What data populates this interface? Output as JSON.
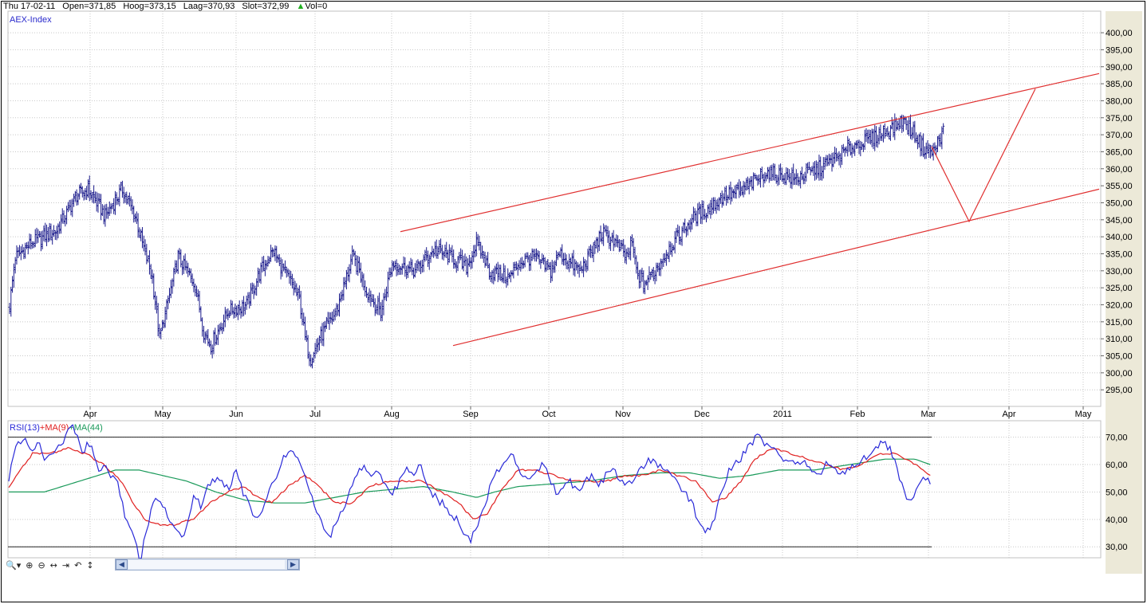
{
  "infobar": {
    "date": "Thu 17-02-11",
    "open": "Open=371,85",
    "high": "Hoog=373,15",
    "low": "Laag=370,93",
    "close": "Slot=372,99",
    "vol_icon": "triangle-up-icon",
    "vol": "Vol=0"
  },
  "colors": {
    "price": "#1c1c8c",
    "trendline": "#e03030",
    "rsi": "#2a2ad8",
    "ma9": "#e02020",
    "ma44": "#1a9a5a",
    "grid": "#c8c8c8",
    "panel_bg": "#ece9d8"
  },
  "chart_data": [
    {
      "type": "ohlc",
      "title": "AEX-Index",
      "x_months": [
        "Apr",
        "May",
        "Jun",
        "Jul",
        "Aug",
        "Sep",
        "Oct",
        "Nov",
        "Dec",
        "2011",
        "Feb",
        "Mar",
        "Apr",
        "May"
      ],
      "ylim": [
        292,
        404
      ],
      "yticks": [
        "295,00",
        "300,00",
        "305,00",
        "310,00",
        "315,00",
        "320,00",
        "325,00",
        "330,00",
        "335,00",
        "340,00",
        "345,00",
        "350,00",
        "355,00",
        "360,00",
        "365,00",
        "370,00",
        "375,00",
        "380,00",
        "385,00",
        "390,00",
        "395,00",
        "400,00"
      ],
      "grid": true,
      "anchors": [
        [
          0,
          320
        ],
        [
          4,
          334
        ],
        [
          15,
          338
        ],
        [
          33,
          342
        ],
        [
          47,
          352
        ],
        [
          55,
          354
        ],
        [
          67,
          346
        ],
        [
          79,
          354
        ],
        [
          88,
          346
        ],
        [
          93,
          338
        ],
        [
          100,
          328
        ],
        [
          105,
          310
        ],
        [
          118,
          334
        ],
        [
          130,
          326
        ],
        [
          136,
          312
        ],
        [
          141,
          308
        ],
        [
          153,
          318
        ],
        [
          166,
          320
        ],
        [
          176,
          330
        ],
        [
          185,
          336
        ],
        [
          189,
          332
        ],
        [
          195,
          328
        ],
        [
          203,
          322
        ],
        [
          207,
          310
        ],
        [
          211,
          304
        ],
        [
          217,
          310
        ],
        [
          229,
          318
        ],
        [
          240,
          334
        ],
        [
          245,
          330
        ],
        [
          250,
          324
        ],
        [
          260,
          318
        ],
        [
          268,
          332
        ],
        [
          284,
          330
        ],
        [
          297,
          336
        ],
        [
          309,
          334
        ],
        [
          320,
          331
        ],
        [
          327,
          338
        ],
        [
          332,
          334
        ],
        [
          336,
          330
        ],
        [
          350,
          328
        ],
        [
          356,
          332
        ],
        [
          367,
          334
        ],
        [
          379,
          330
        ],
        [
          385,
          335
        ],
        [
          400,
          330
        ],
        [
          415,
          341
        ],
        [
          423,
          339
        ],
        [
          432,
          334
        ],
        [
          436,
          338
        ],
        [
          439,
          330
        ],
        [
          444,
          326
        ],
        [
          452,
          330
        ],
        [
          461,
          336
        ],
        [
          468,
          340
        ],
        [
          480,
          346
        ],
        [
          489,
          348
        ],
        [
          500,
          352
        ],
        [
          511,
          353
        ],
        [
          530,
          359
        ],
        [
          550,
          357
        ],
        [
          571,
          361
        ],
        [
          592,
          367
        ],
        [
          610,
          370
        ],
        [
          618,
          372
        ],
        [
          626,
          374
        ],
        [
          634,
          370
        ],
        [
          640,
          366
        ],
        [
          647,
          365
        ],
        [
          654,
          371
        ]
      ],
      "annotations": {
        "channel_upper": [
          [
            502,
            341.5
          ],
          [
            1378,
            388
          ]
        ],
        "channel_lower": [
          [
            568,
            308
          ],
          [
            1378,
            354
          ]
        ],
        "projection": [
          [
            1168,
            366.5
          ],
          [
            1215,
            344.5
          ],
          [
            1298,
            383.5
          ]
        ]
      }
    },
    {
      "type": "line",
      "title": "RSI(13)+MA(9)+MA(44)",
      "legend": [
        "RSI(13)",
        "+MA(9)",
        "+MA(44)"
      ],
      "ylim": [
        26,
        76
      ],
      "yticks": [
        "30,00",
        "40,00",
        "50,00",
        "60,00",
        "70,00"
      ],
      "reference_lines": [
        30,
        70
      ],
      "rsi_anchors": [
        [
          0,
          55
        ],
        [
          6,
          66
        ],
        [
          12,
          70
        ],
        [
          18,
          65
        ],
        [
          25,
          68
        ],
        [
          31,
          62
        ],
        [
          37,
          65
        ],
        [
          43,
          67
        ],
        [
          50,
          72
        ],
        [
          55,
          74
        ],
        [
          62,
          65
        ],
        [
          69,
          68
        ],
        [
          75,
          58
        ],
        [
          81,
          60
        ],
        [
          87,
          55
        ],
        [
          93,
          52
        ],
        [
          99,
          40
        ],
        [
          106,
          33
        ],
        [
          111,
          25
        ],
        [
          116,
          35
        ],
        [
          122,
          47
        ],
        [
          128,
          46
        ],
        [
          134,
          42
        ],
        [
          140,
          36
        ],
        [
          146,
          33
        ],
        [
          151,
          38
        ],
        [
          156,
          48
        ],
        [
          162,
          45
        ],
        [
          168,
          52
        ],
        [
          174,
          55
        ],
        [
          180,
          53
        ],
        [
          186,
          52
        ],
        [
          192,
          58
        ],
        [
          198,
          50
        ],
        [
          204,
          44
        ],
        [
          210,
          40
        ],
        [
          216,
          45
        ],
        [
          222,
          52
        ],
        [
          228,
          58
        ],
        [
          234,
          64
        ],
        [
          240,
          66
        ],
        [
          246,
          60
        ],
        [
          252,
          52
        ],
        [
          258,
          45
        ],
        [
          264,
          38
        ],
        [
          270,
          33
        ],
        [
          276,
          38
        ],
        [
          282,
          44
        ],
        [
          288,
          50
        ],
        [
          294,
          56
        ],
        [
          300,
          60
        ],
        [
          306,
          55
        ],
        [
          312,
          57
        ],
        [
          318,
          52
        ],
        [
          324,
          50
        ],
        [
          330,
          54
        ],
        [
          336,
          58
        ],
        [
          342,
          56
        ],
        [
          348,
          60
        ],
        [
          354,
          52
        ],
        [
          360,
          48
        ],
        [
          366,
          46
        ],
        [
          372,
          42
        ],
        [
          378,
          40
        ],
        [
          384,
          35
        ],
        [
          390,
          33
        ],
        [
          396,
          38
        ],
        [
          402,
          46
        ],
        [
          408,
          54
        ],
        [
          414,
          58
        ],
        [
          420,
          62
        ],
        [
          426,
          64
        ],
        [
          432,
          56
        ],
        [
          438,
          54
        ],
        [
          444,
          58
        ],
        [
          450,
          60
        ],
        [
          456,
          56
        ],
        [
          462,
          50
        ],
        [
          468,
          52
        ],
        [
          474,
          54
        ],
        [
          480,
          50
        ],
        [
          486,
          54
        ],
        [
          492,
          56
        ],
        [
          498,
          52
        ],
        [
          504,
          56
        ],
        [
          510,
          58
        ],
        [
          516,
          55
        ],
        [
          522,
          52
        ],
        [
          528,
          55
        ],
        [
          534,
          58
        ],
        [
          540,
          62
        ],
        [
          546,
          60
        ],
        [
          552,
          58
        ],
        [
          558,
          56
        ],
        [
          564,
          53
        ],
        [
          570,
          50
        ],
        [
          576,
          47
        ],
        [
          582,
          40
        ],
        [
          588,
          36
        ],
        [
          594,
          38
        ],
        [
          600,
          48
        ],
        [
          606,
          56
        ],
        [
          612,
          60
        ],
        [
          618,
          62
        ],
        [
          624,
          66
        ],
        [
          630,
          70
        ],
        [
          636,
          69
        ],
        [
          642,
          66
        ],
        [
          648,
          64
        ],
        [
          654,
          62
        ],
        [
          660,
          60
        ],
        [
          666,
          62
        ],
        [
          672,
          60
        ],
        [
          678,
          58
        ],
        [
          684,
          56
        ],
        [
          690,
          60
        ],
        [
          696,
          58
        ],
        [
          702,
          56
        ],
        [
          708,
          58
        ],
        [
          714,
          60
        ],
        [
          720,
          62
        ],
        [
          726,
          64
        ],
        [
          732,
          66
        ],
        [
          738,
          68
        ],
        [
          744,
          66
        ],
        [
          750,
          58
        ],
        [
          756,
          50
        ],
        [
          762,
          46
        ],
        [
          768,
          52
        ],
        [
          774,
          55
        ],
        [
          778,
          53
        ]
      ],
      "ma9_anchors": [
        [
          0,
          52
        ],
        [
          10,
          58
        ],
        [
          20,
          64
        ],
        [
          35,
          64
        ],
        [
          50,
          66
        ],
        [
          65,
          64
        ],
        [
          80,
          60
        ],
        [
          95,
          54
        ],
        [
          105,
          46
        ],
        [
          115,
          40
        ],
        [
          128,
          38
        ],
        [
          140,
          38
        ],
        [
          155,
          40
        ],
        [
          170,
          46
        ],
        [
          185,
          50
        ],
        [
          198,
          52
        ],
        [
          210,
          48
        ],
        [
          222,
          46
        ],
        [
          236,
          52
        ],
        [
          250,
          56
        ],
        [
          262,
          52
        ],
        [
          275,
          46
        ],
        [
          290,
          46
        ],
        [
          305,
          52
        ],
        [
          320,
          54
        ],
        [
          335,
          54
        ],
        [
          350,
          54
        ],
        [
          365,
          50
        ],
        [
          380,
          46
        ],
        [
          392,
          40
        ],
        [
          404,
          42
        ],
        [
          418,
          52
        ],
        [
          430,
          58
        ],
        [
          445,
          58
        ],
        [
          460,
          56
        ],
        [
          475,
          54
        ],
        [
          490,
          54
        ],
        [
          505,
          54
        ],
        [
          520,
          56
        ],
        [
          535,
          56
        ],
        [
          550,
          58
        ],
        [
          565,
          56
        ],
        [
          580,
          54
        ],
        [
          595,
          46
        ],
        [
          606,
          48
        ],
        [
          618,
          54
        ],
        [
          630,
          62
        ],
        [
          645,
          66
        ],
        [
          660,
          64
        ],
        [
          675,
          62
        ],
        [
          690,
          60
        ],
        [
          705,
          58
        ],
        [
          720,
          60
        ],
        [
          735,
          64
        ],
        [
          750,
          64
        ],
        [
          765,
          60
        ],
        [
          778,
          56
        ]
      ],
      "ma44_anchors": [
        [
          0,
          50
        ],
        [
          30,
          50
        ],
        [
          60,
          54
        ],
        [
          90,
          58
        ],
        [
          110,
          58
        ],
        [
          130,
          56
        ],
        [
          150,
          54
        ],
        [
          175,
          50
        ],
        [
          200,
          47
        ],
        [
          225,
          46
        ],
        [
          250,
          46
        ],
        [
          275,
          48
        ],
        [
          300,
          50
        ],
        [
          325,
          51
        ],
        [
          350,
          52
        ],
        [
          375,
          50
        ],
        [
          395,
          48
        ],
        [
          410,
          50
        ],
        [
          430,
          52
        ],
        [
          460,
          53
        ],
        [
          490,
          54
        ],
        [
          520,
          56
        ],
        [
          550,
          57
        ],
        [
          575,
          57
        ],
        [
          600,
          55
        ],
        [
          625,
          56
        ],
        [
          650,
          58
        ],
        [
          680,
          58
        ],
        [
          710,
          60
        ],
        [
          740,
          62
        ],
        [
          765,
          62
        ],
        [
          778,
          60
        ]
      ]
    }
  ]
}
